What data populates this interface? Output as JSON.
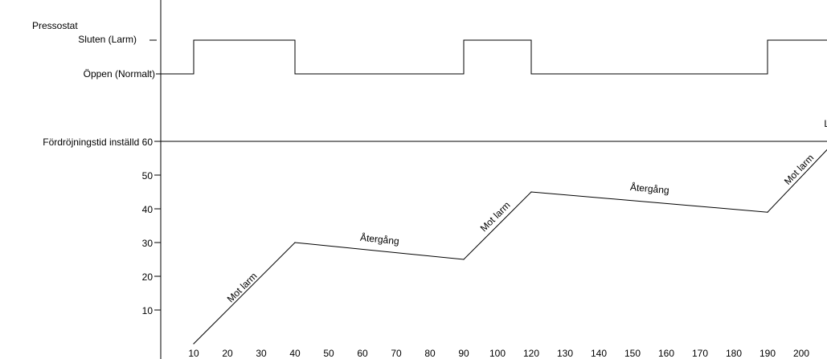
{
  "chart_data": {
    "type": "line",
    "switch_panel": {
      "title": "Pressostat",
      "state_labels": [
        "Sluten (Larm)",
        "Öppen (Normalt)"
      ],
      "states": [
        {
          "x": 0,
          "v": 0
        },
        {
          "x": 10,
          "v": 1
        },
        {
          "x": 40,
          "v": 0
        },
        {
          "x": 90,
          "v": 1
        },
        {
          "x": 110,
          "v": 0
        },
        {
          "x": 180,
          "v": 1
        },
        {
          "x": 202,
          "v": 1
        }
      ]
    },
    "delay_panel": {
      "threshold_label": "Fördröjningstid inställd",
      "threshold": 60,
      "y_ticks": [
        10,
        20,
        30,
        40,
        50,
        60
      ],
      "ylim": [
        0,
        60
      ],
      "x_ticks": [
        10,
        20,
        30,
        40,
        50,
        60,
        70,
        80,
        90,
        100,
        120,
        130,
        140,
        150,
        160,
        170,
        180,
        190,
        200
      ],
      "series": [
        {
          "x": [
            10,
            40,
            90,
            110,
            180,
            200
          ],
          "y": [
            0,
            30,
            25,
            45,
            39,
            60
          ]
        }
      ],
      "segment_labels": [
        {
          "text": "Mot larm",
          "x": 25,
          "y": 16
        },
        {
          "text": "Återgång",
          "x": 65,
          "y": 30
        },
        {
          "text": "Mot larm",
          "x": 100,
          "y": 37
        },
        {
          "text": "Återgång",
          "x": 145,
          "y": 45
        },
        {
          "text": "Mot larm",
          "x": 190,
          "y": 51
        }
      ],
      "alarm_marker": {
        "text": "Larm",
        "x": 200,
        "y": 60
      }
    }
  }
}
